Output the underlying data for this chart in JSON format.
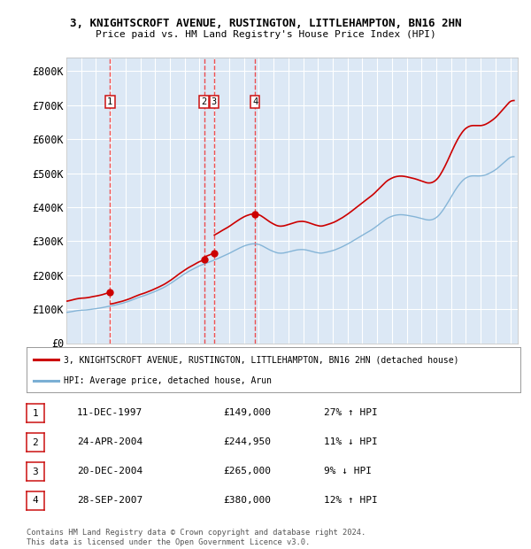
{
  "title1": "3, KNIGHTSCROFT AVENUE, RUSTINGTON, LITTLEHAMPTON, BN16 2HN",
  "title2": "Price paid vs. HM Land Registry's House Price Index (HPI)",
  "ylim": [
    0,
    840000
  ],
  "yticks": [
    0,
    100000,
    200000,
    300000,
    400000,
    500000,
    600000,
    700000,
    800000
  ],
  "ytick_labels": [
    "£0",
    "£100K",
    "£200K",
    "£300K",
    "£400K",
    "£500K",
    "£600K",
    "£700K",
    "£800K"
  ],
  "background_color": "#ffffff",
  "plot_bg_color": "#dce8f5",
  "grid_color": "#ffffff",
  "hpi_color": "#7bafd4",
  "price_color": "#cc0000",
  "vline_color": "#ee3333",
  "legend_label_price": "3, KNIGHTSCROFT AVENUE, RUSTINGTON, LITTLEHAMPTON, BN16 2HN (detached house)",
  "legend_label_hpi": "HPI: Average price, detached house, Arun",
  "sales": [
    {
      "num": 1,
      "date_label": "11-DEC-1997",
      "price": 149000,
      "year_x": 1997.95
    },
    {
      "num": 2,
      "date_label": "24-APR-2004",
      "price": 244950,
      "year_x": 2004.3
    },
    {
      "num": 3,
      "date_label": "20-DEC-2004",
      "price": 265000,
      "year_x": 2004.97
    },
    {
      "num": 4,
      "date_label": "28-SEP-2007",
      "price": 380000,
      "year_x": 2007.75
    }
  ],
  "table_rows": [
    {
      "num": 1,
      "date": "11-DEC-1997",
      "price": "£149,000",
      "pct": "27% ↑ HPI"
    },
    {
      "num": 2,
      "date": "24-APR-2004",
      "price": "£244,950",
      "pct": "11% ↓ HPI"
    },
    {
      "num": 3,
      "date": "20-DEC-2004",
      "price": "£265,000",
      "pct": "9% ↓ HPI"
    },
    {
      "num": 4,
      "date": "28-SEP-2007",
      "price": "£380,000",
      "pct": "12% ↑ HPI"
    }
  ],
  "footnote": "Contains HM Land Registry data © Crown copyright and database right 2024.\nThis data is licensed under the Open Government Licence v3.0.",
  "xmin": 1995.0,
  "xmax": 2025.5
}
